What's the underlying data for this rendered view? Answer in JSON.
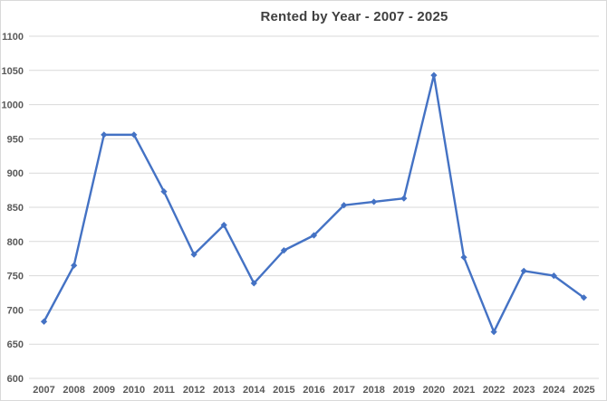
{
  "chart_data": {
    "type": "line",
    "title": "Rented by Year - 2007 - 2025",
    "categories": [
      "2007",
      "2008",
      "2009",
      "2010",
      "2011",
      "2012",
      "2013",
      "2014",
      "2015",
      "2016",
      "2017",
      "2018",
      "2019",
      "2020",
      "2021",
      "2022",
      "2023",
      "2024",
      "2025"
    ],
    "values": [
      683,
      765,
      956,
      956,
      873,
      781,
      824,
      739,
      787,
      809,
      853,
      858,
      863,
      1043,
      777,
      668,
      757,
      750,
      718
    ],
    "xlabel": "",
    "ylabel": "",
    "ylim": [
      600,
      1100
    ],
    "yticks": [
      600,
      650,
      700,
      750,
      800,
      850,
      900,
      950,
      1000,
      1050,
      1100
    ],
    "grid": true,
    "legend": "none",
    "marker_shape": "diamond",
    "colors": {
      "line": "#4472C4",
      "marker": "#4472C4",
      "gridline": "#D9D9D9",
      "axis_labels": "#595959",
      "title": "#404040",
      "border": "#D9D9D9",
      "background": "#FFFFFF"
    }
  }
}
